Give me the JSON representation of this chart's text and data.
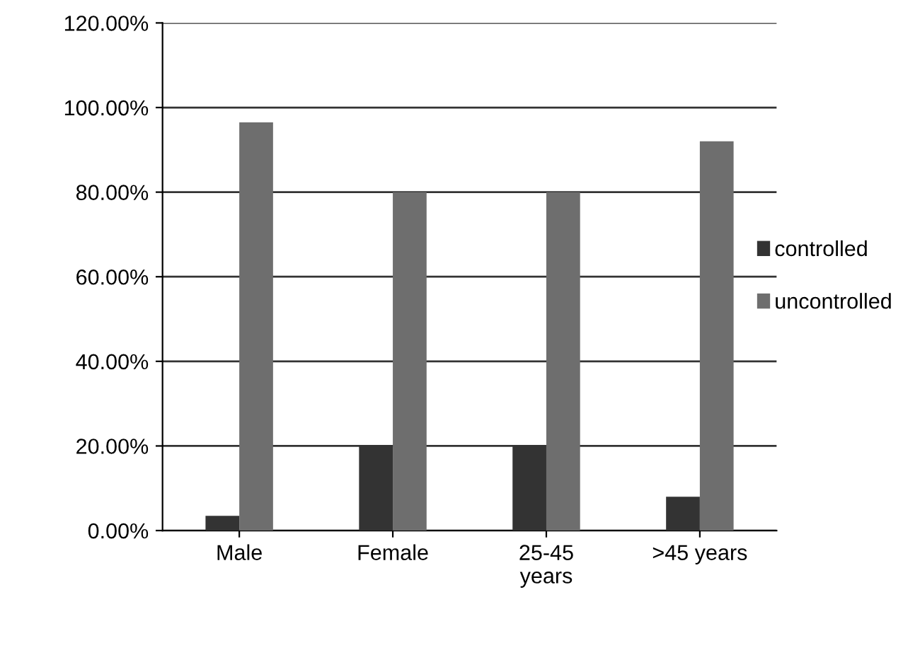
{
  "chart_data": {
    "type": "bar",
    "categories": [
      "Male",
      "Female",
      "25-45\nyears",
      ">45 years"
    ],
    "series": [
      {
        "name": "controlled",
        "color": "#333333",
        "values": [
          3.5,
          20,
          20,
          8
        ]
      },
      {
        "name": "uncontrolled",
        "color": "#6e6e6e",
        "values": [
          96.5,
          80,
          80,
          92
        ]
      }
    ],
    "ylim": [
      0,
      120
    ],
    "yticks": [
      {
        "value": 0,
        "label": "0.00%"
      },
      {
        "value": 20,
        "label": "20.00%"
      },
      {
        "value": 40,
        "label": "40.00%"
      },
      {
        "value": 60,
        "label": "60.00%"
      },
      {
        "value": 80,
        "label": "80.00%"
      },
      {
        "value": 100,
        "label": "100.00%"
      },
      {
        "value": 120,
        "label": "120.00%"
      }
    ],
    "grid": "y",
    "legend": "right"
  }
}
